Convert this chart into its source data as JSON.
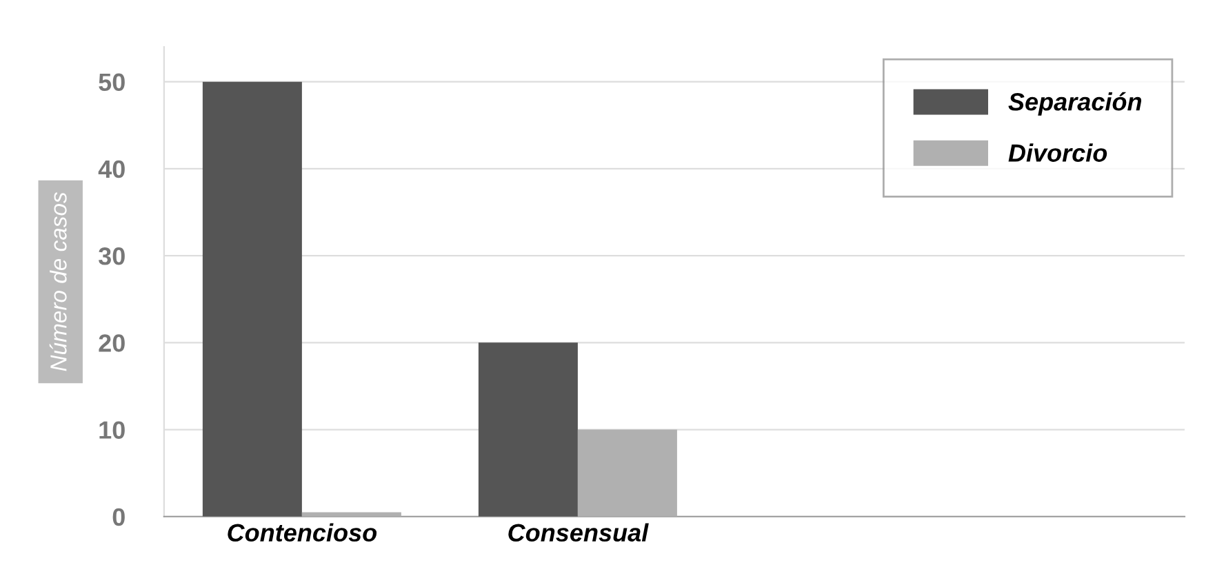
{
  "chart_data": {
    "type": "bar",
    "ylabel": "Número de casos",
    "categories": [
      "Contencioso",
      "Consensual"
    ],
    "series": [
      {
        "name": "Separación",
        "color": "#555555",
        "values": [
          50,
          20
        ]
      },
      {
        "name": "Divorcio",
        "color": "#b0b0b0",
        "values": [
          0.5,
          10
        ]
      }
    ],
    "ylim": [
      0,
      54
    ],
    "yticks": [
      0,
      10,
      20,
      30,
      40,
      50
    ],
    "grid": "y",
    "legend": "top right"
  }
}
